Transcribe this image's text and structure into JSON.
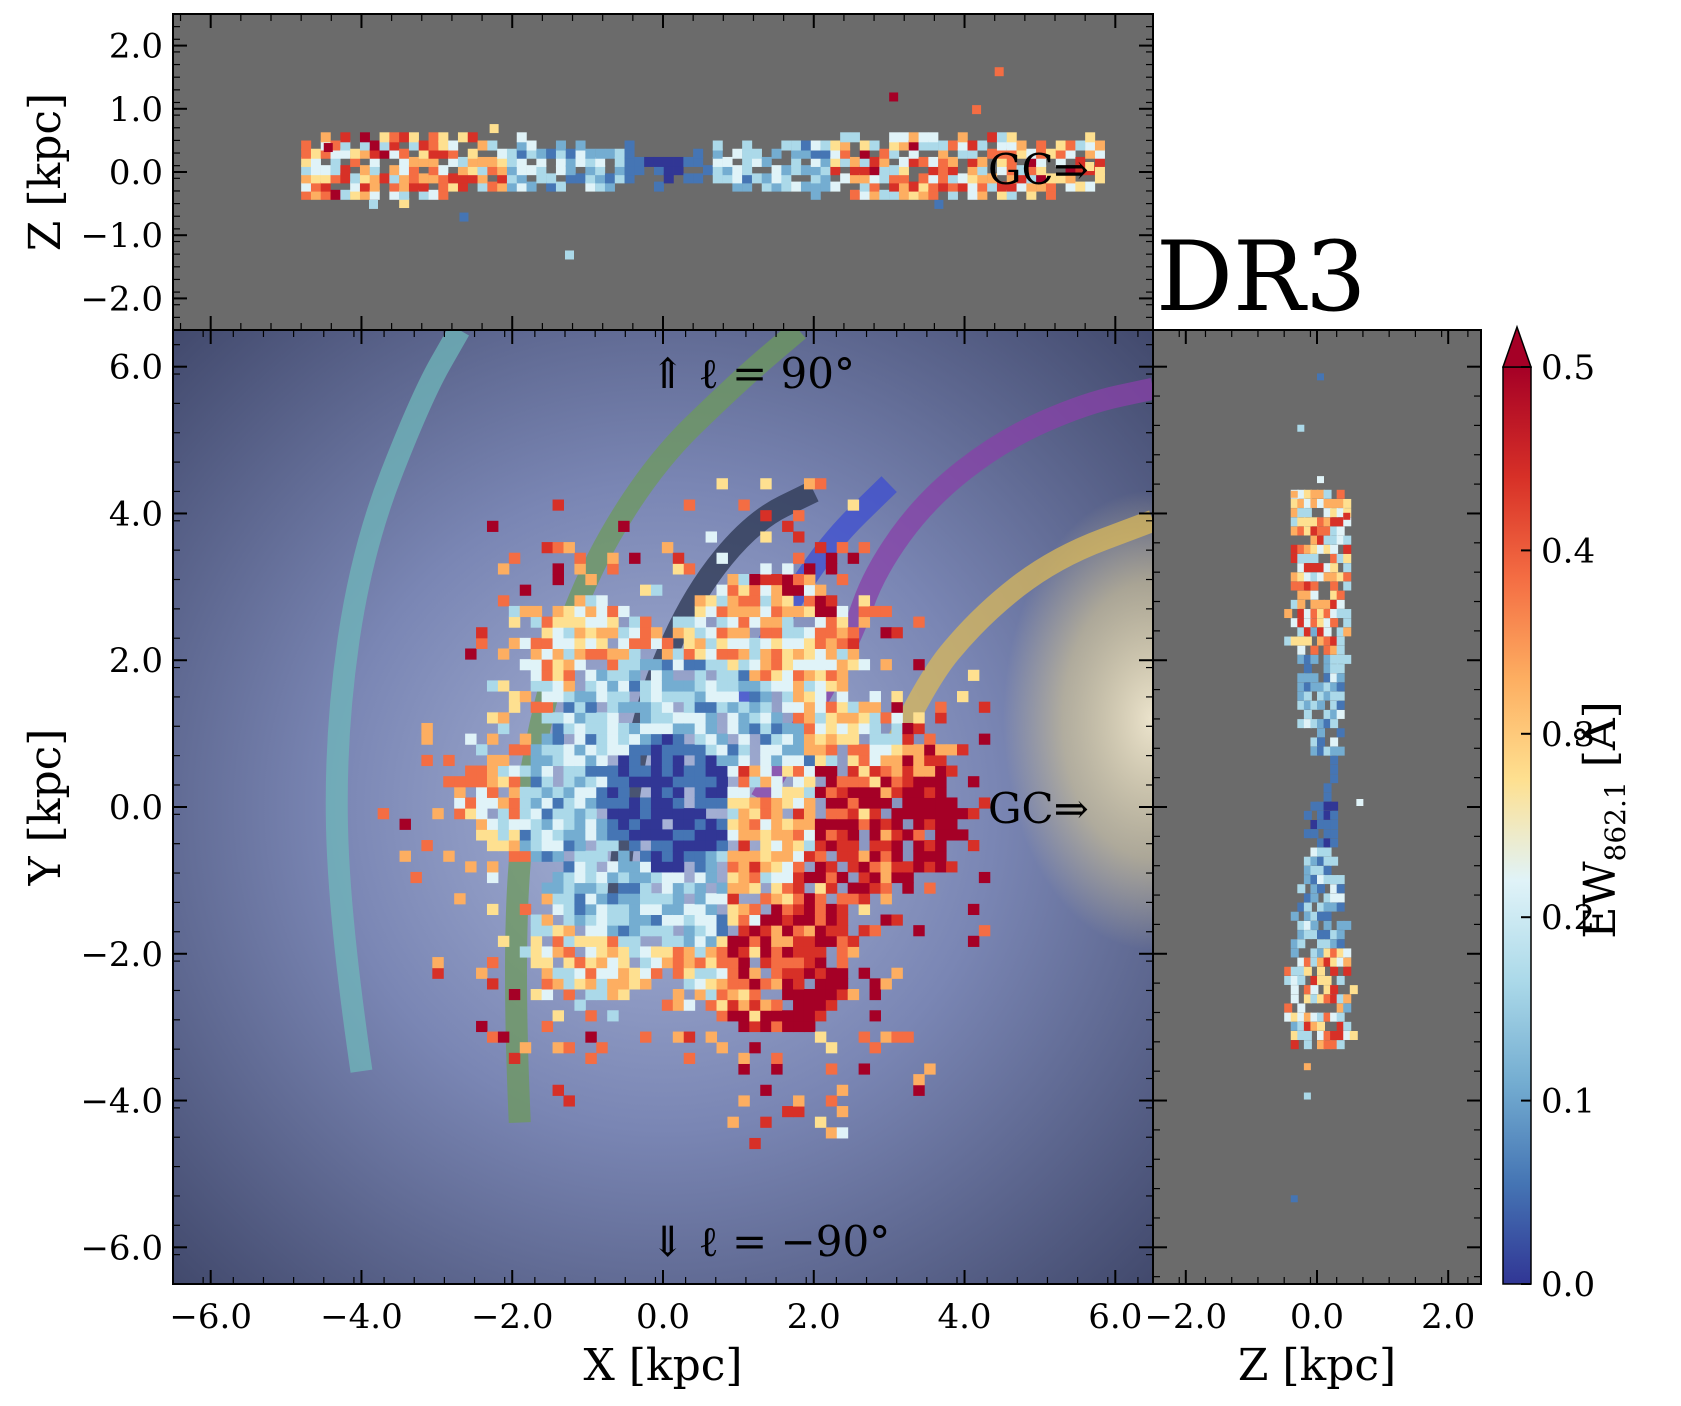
{
  "label": "DR3",
  "colors": {
    "panel_bg": "#6b6b6b",
    "galaxy_bg": "#5c6690",
    "galaxy_bulge": "#e6dba0",
    "cmap": [
      "#313695",
      "#4575b4",
      "#74add1",
      "#abd9e9",
      "#e0f3f8",
      "#fee090",
      "#fdae61",
      "#f46d43",
      "#d73027",
      "#a50026"
    ]
  },
  "chart_data": [
    {
      "id": "xz",
      "type": "heatmap",
      "xlabel": "X [kpc]",
      "ylabel": "Z [kpc]",
      "xlim": [
        -6.5,
        6.5
      ],
      "ylim": [
        -2.5,
        2.5
      ],
      "yticks": [
        "−2.0",
        "−1.0",
        "0.0",
        "1.0",
        "2.0"
      ],
      "ytick_values": [
        -2,
        -1,
        0,
        1,
        2
      ],
      "annotations": [
        {
          "text": "GC⇒"
        }
      ]
    },
    {
      "id": "xy",
      "type": "heatmap",
      "xlabel": "X [kpc]",
      "ylabel": "Y [kpc]",
      "xlim": [
        -6.5,
        6.5
      ],
      "ylim": [
        -6.5,
        6.5
      ],
      "xticks": [
        "−6.0",
        "−4.0",
        "−2.0",
        "0.0",
        "2.0",
        "4.0",
        "6.0"
      ],
      "xtick_values": [
        -6,
        -4,
        -2,
        0,
        2,
        4,
        6
      ],
      "yticks": [
        "−6.0",
        "−4.0",
        "−2.0",
        "0.0",
        "2.0",
        "4.0",
        "6.0"
      ],
      "ytick_values": [
        -6,
        -4,
        -2,
        0,
        2,
        4,
        6
      ],
      "annotations": [
        {
          "text": "⇑ ℓ = 90°"
        },
        {
          "text": "⇓ ℓ = −90°"
        },
        {
          "text": "GC⇒"
        }
      ],
      "spiral_arms": [
        {
          "color": "#6fb7b9",
          "points": [
            [
              -4.0,
              -3.6
            ],
            [
              -4.3,
              -1.5
            ],
            [
              -4.35,
              1.0
            ],
            [
              -4.0,
              3.5
            ],
            [
              -3.2,
              5.6
            ],
            [
              -2.7,
              6.5
            ]
          ]
        },
        {
          "color": "#6d9a5c",
          "points": [
            [
              -1.9,
              -4.3
            ],
            [
              -2.0,
              -2.0
            ],
            [
              -1.8,
              0.5
            ],
            [
              -1.2,
              2.8
            ],
            [
              -0.2,
              4.6
            ],
            [
              1.0,
              5.8
            ],
            [
              1.8,
              6.5
            ]
          ]
        },
        {
          "color": "#2b3550",
          "points": [
            [
              -0.6,
              -1.3
            ],
            [
              -0.5,
              0.0
            ],
            [
              -0.2,
              1.5
            ],
            [
              0.4,
              2.9
            ],
            [
              1.2,
              3.9
            ],
            [
              2.0,
              4.3
            ]
          ]
        },
        {
          "color": "#3d4dd0",
          "points": [
            [
              1.0,
              1.4
            ],
            [
              1.5,
              2.5
            ],
            [
              2.2,
              3.6
            ],
            [
              3.0,
              4.4
            ]
          ]
        },
        {
          "color": "#8840a8",
          "points": [
            [
              1.3,
              0.1
            ],
            [
              1.8,
              1.0
            ],
            [
              2.5,
              2.3
            ],
            [
              2.8,
              3.2
            ],
            [
              3.5,
              4.2
            ],
            [
              4.5,
              5.0
            ],
            [
              5.6,
              5.5
            ],
            [
              6.5,
              5.7
            ]
          ]
        },
        {
          "color": "#d9b85a",
          "points": [
            [
              2.8,
              0.2
            ],
            [
              3.4,
              1.6
            ],
            [
              4.2,
              2.6
            ],
            [
              5.2,
              3.4
            ],
            [
              6.5,
              3.9
            ]
          ]
        }
      ]
    },
    {
      "id": "zy",
      "type": "heatmap",
      "xlabel": "Z [kpc]",
      "ylabel": "",
      "xlim": [
        -2.5,
        2.5
      ],
      "ylim": [
        -6.5,
        6.5
      ],
      "xticks": [
        "−2.0",
        "0.0",
        "2.0"
      ],
      "xtick_values": [
        -2,
        0,
        2
      ]
    },
    {
      "id": "colorbar",
      "type": "colorbar",
      "label": "EW862.1 [Å]",
      "label_main": "EW",
      "label_sub": "862.1",
      "label_unit": " [Å]",
      "lim": [
        0.0,
        0.5
      ],
      "ticks": [
        "0.0",
        "0.1",
        "0.2",
        "0.3",
        "0.4",
        "0.5"
      ],
      "tick_values": [
        0.0,
        0.1,
        0.2,
        0.3,
        0.4,
        0.5
      ],
      "extend": "max"
    }
  ]
}
